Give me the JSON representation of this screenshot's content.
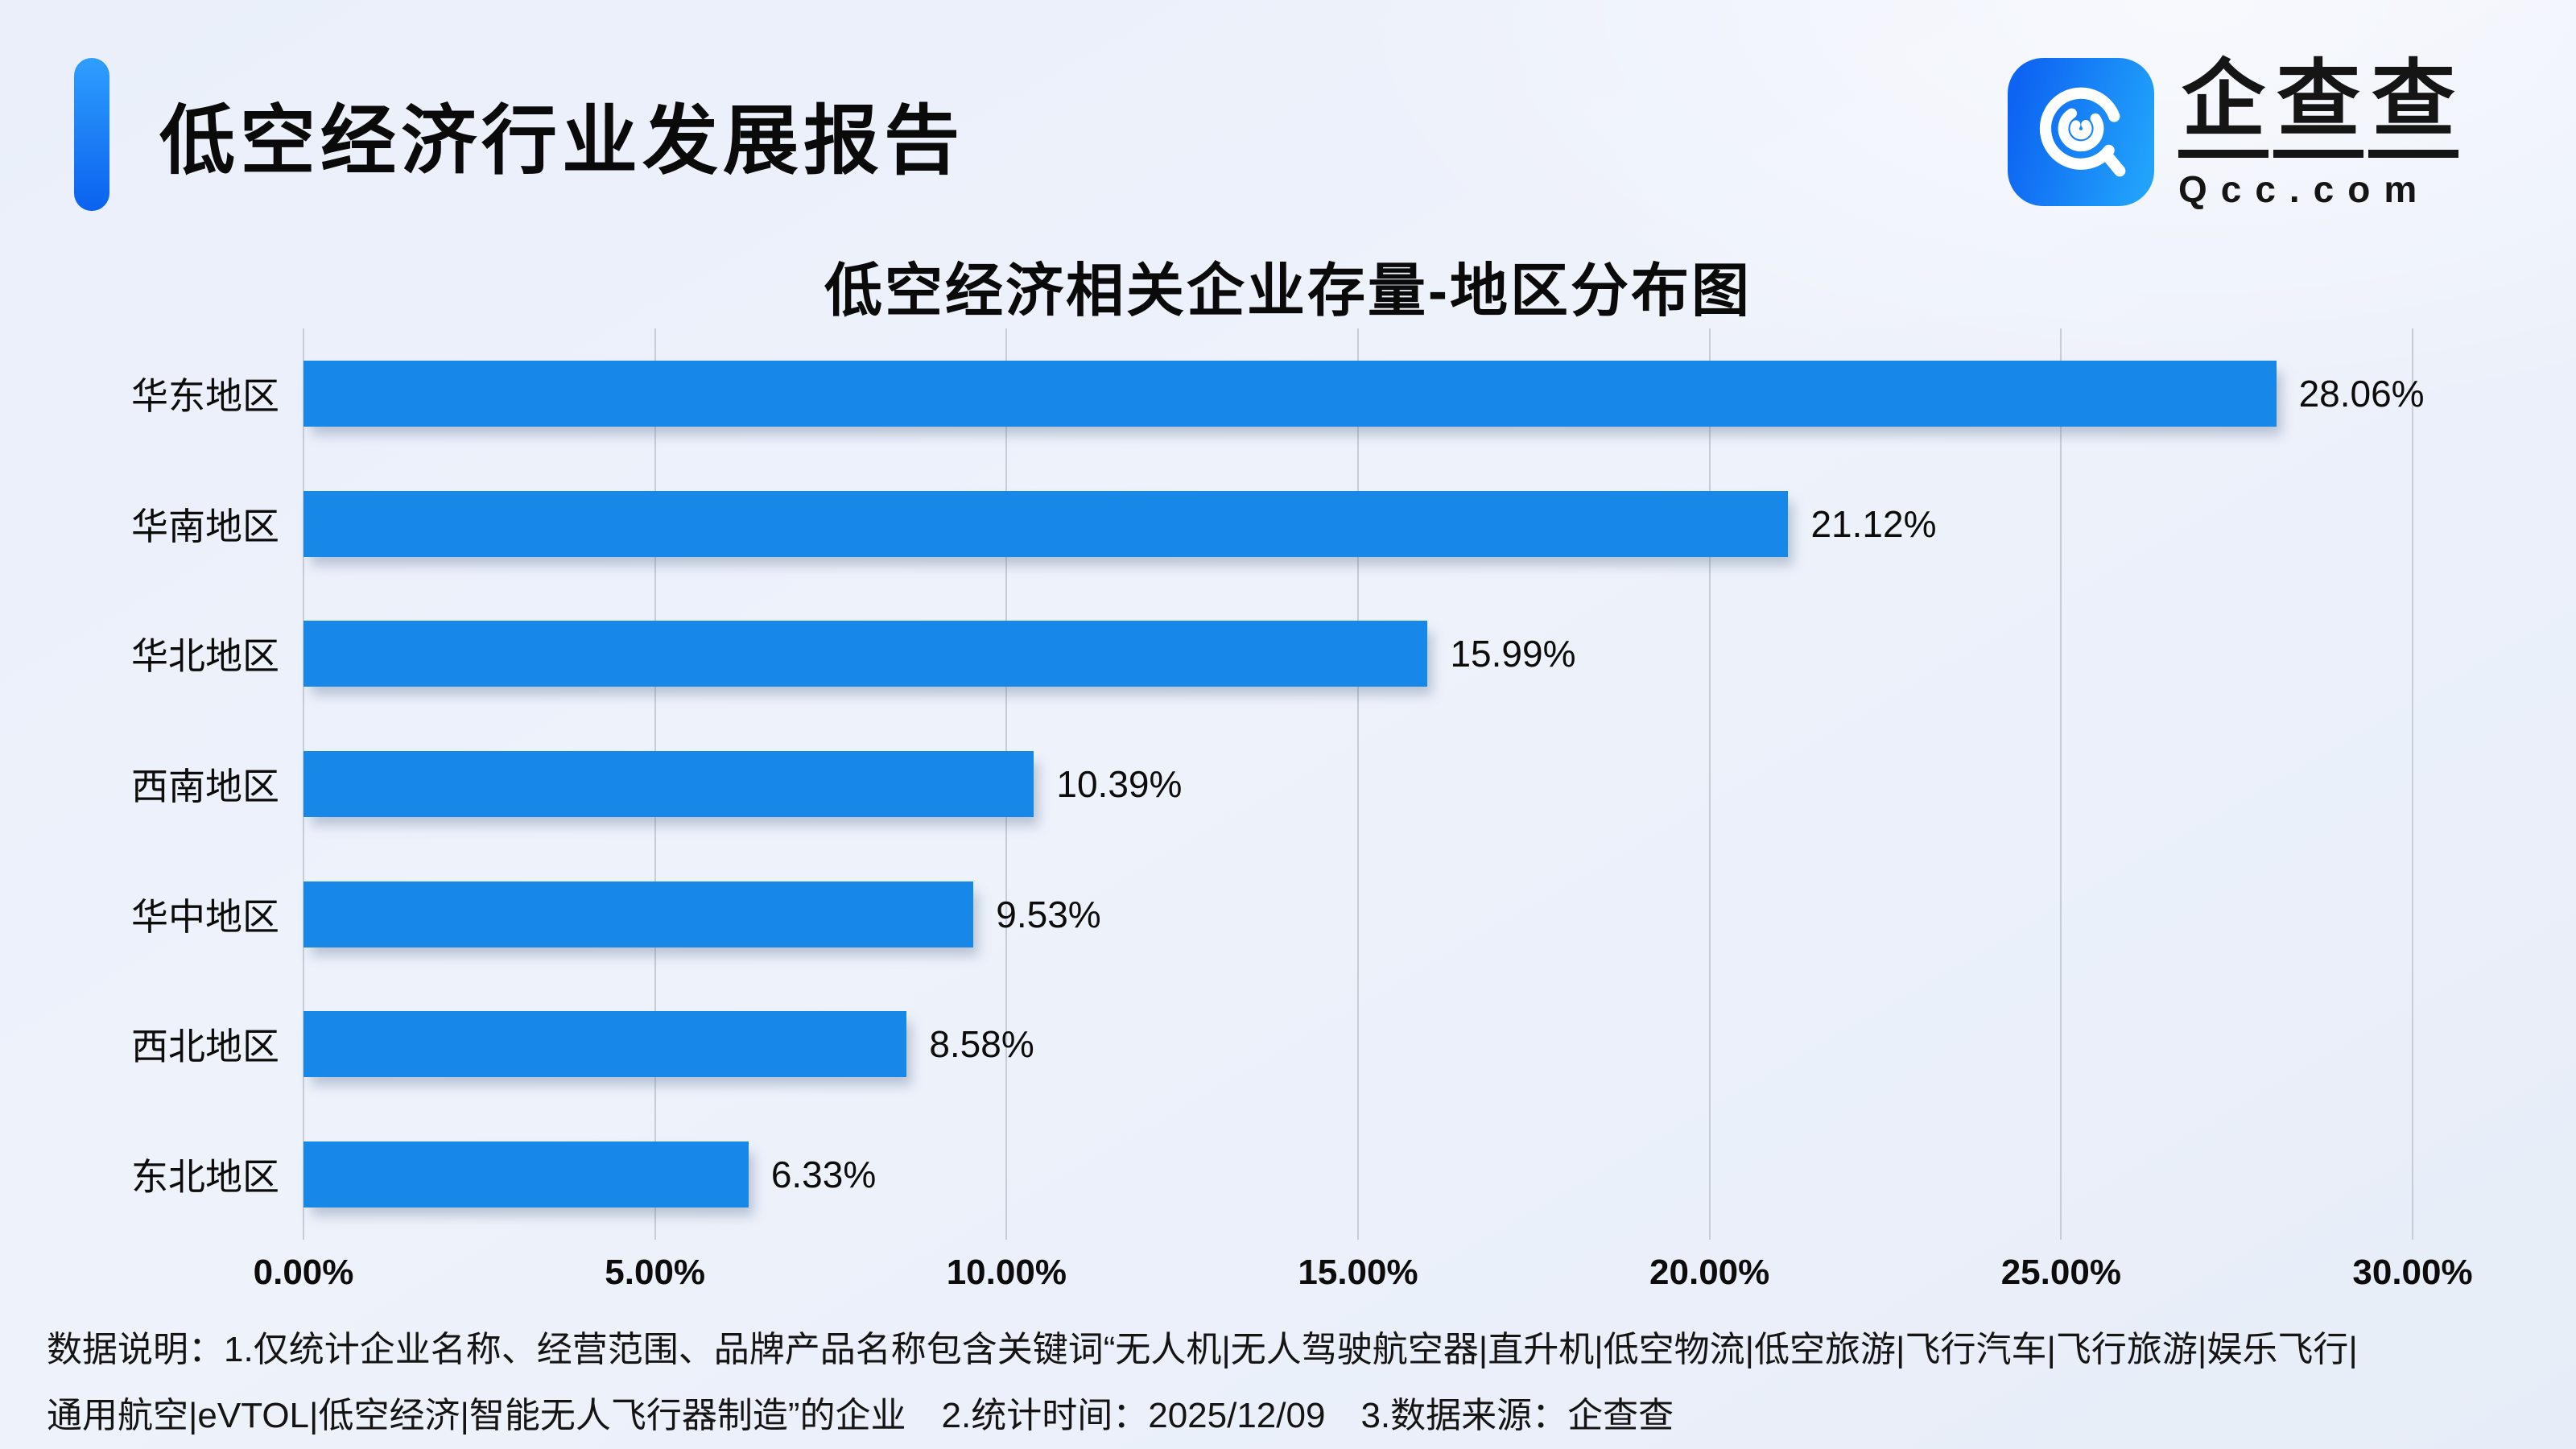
{
  "header": {
    "report_title": "低空经济行业发展报告"
  },
  "brand": {
    "name": "企查查",
    "name_chars": [
      "企",
      "查",
      "查"
    ],
    "domain": "Qcc.com",
    "icon": "qcc-magnifier-icon"
  },
  "chart_data": {
    "type": "bar",
    "orientation": "horizontal",
    "title": "低空经济相关企业存量-地区分布图",
    "categories": [
      "华东地区",
      "华南地区",
      "华北地区",
      "西南地区",
      "华中地区",
      "西北地区",
      "东北地区"
    ],
    "values": [
      28.06,
      21.12,
      15.99,
      10.39,
      9.53,
      8.58,
      6.33
    ],
    "value_labels": [
      "28.06%",
      "21.12%",
      "15.99%",
      "10.39%",
      "9.53%",
      "8.58%",
      "6.33%"
    ],
    "x_ticks": [
      "0.00%",
      "5.00%",
      "10.00%",
      "15.00%",
      "20.00%",
      "25.00%",
      "30.00%"
    ],
    "xlim": [
      0,
      30
    ],
    "grid": true,
    "legend_position": "none",
    "bar_color": "#1788e8"
  },
  "footer": {
    "line1": "数据说明：1.仅统计企业名称、经营范围、品牌产品名称包含关键词“无人机|无人驾驶航空器|直升机|低空物流|低空旅游|飞行汽车|飞行旅游|娱乐飞行|",
    "line2": "通用航空|eVTOL|低空经济|智能无人飞行器制造”的企业　2.统计时间：2025/12/09　3.数据来源：企查查"
  },
  "colors": {
    "bar": "#1788e8",
    "accent_from": "#2f9efd",
    "accent_to": "#0a62ef",
    "grid": "#c7ccd6",
    "background": "#edf1fa",
    "text": "#111111",
    "icon_from": "#0d63f2",
    "icon_to": "#21a3fb"
  }
}
